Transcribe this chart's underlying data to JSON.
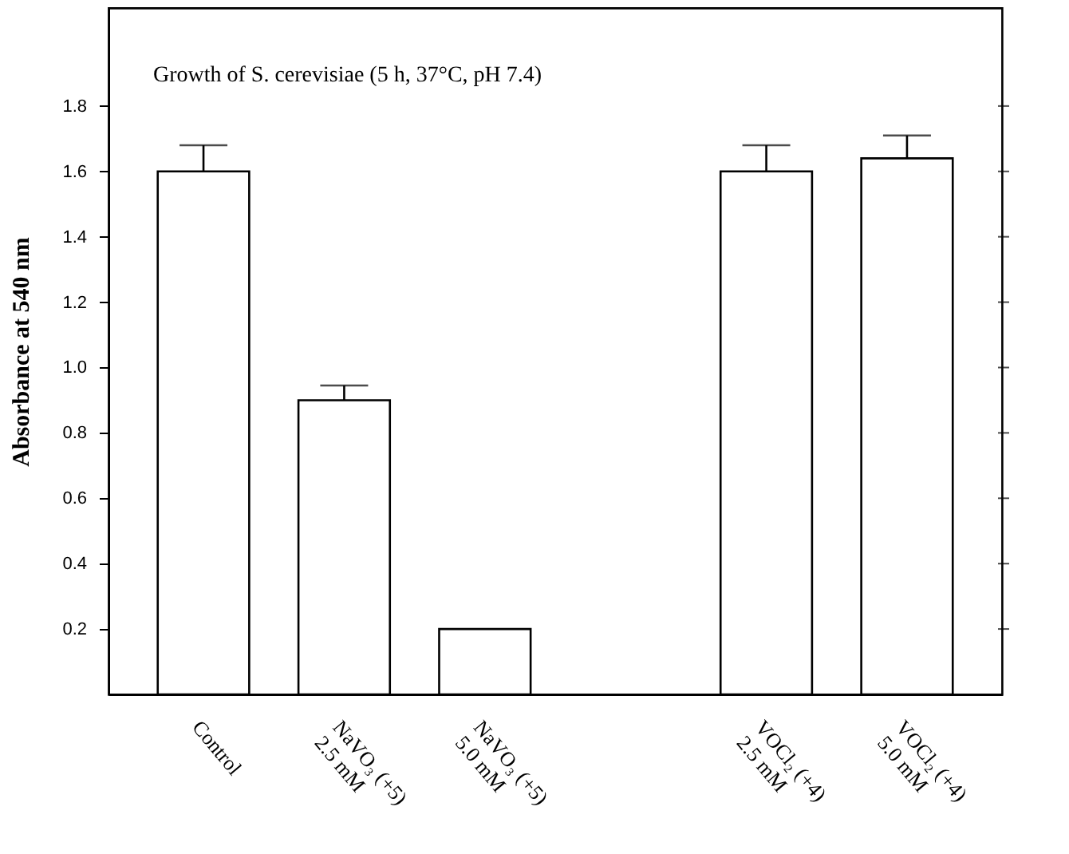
{
  "chart_data": {
    "type": "bar",
    "title": "Growth of S. cerevisiae (5 h, 37°C, pH 7.4)",
    "ylabel": "Absorbance at 540 nm",
    "categories": [
      "Control",
      "NaVO₃ (+5)\n2.5 mM",
      "NaVO₃ (+5)\n5.0 mM",
      null,
      "VOCl₂ (+4)\n2.5 mM",
      "VOCl₂ (+4)\n5.0 mM"
    ],
    "values": [
      1.6,
      0.9,
      0.2,
      null,
      1.6,
      1.64
    ],
    "errors": [
      [
        1.6,
        1.68
      ],
      [
        0.9,
        0.945
      ],
      null,
      null,
      [
        1.6,
        1.68
      ],
      [
        1.64,
        1.71
      ]
    ],
    "color": "#ffffff",
    "ylim": [
      0,
      2.1
    ],
    "yticks": [
      0.2,
      0.4,
      0.6,
      0.8,
      {
        "value": 1,
        "label": "1.0"
      },
      1.2,
      1.4,
      1.6,
      1.8
    ],
    "grid": false
  }
}
